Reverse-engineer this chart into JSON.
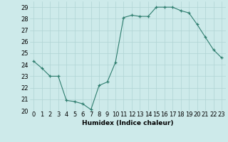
{
  "x": [
    0,
    1,
    2,
    3,
    4,
    5,
    6,
    7,
    8,
    9,
    10,
    11,
    12,
    13,
    14,
    15,
    16,
    17,
    18,
    19,
    20,
    21,
    22,
    23
  ],
  "y": [
    24.3,
    23.7,
    23.0,
    23.0,
    20.9,
    20.8,
    20.6,
    20.1,
    22.2,
    22.5,
    24.2,
    28.1,
    28.3,
    28.2,
    28.2,
    29.0,
    29.0,
    29.0,
    28.7,
    28.5,
    27.5,
    26.4,
    25.3,
    24.6
  ],
  "title": "",
  "xlabel": "Humidex (Indice chaleur)",
  "ylabel": "",
  "xlim": [
    -0.5,
    23.5
  ],
  "ylim": [
    20,
    29.5
  ],
  "yticks": [
    20,
    21,
    22,
    23,
    24,
    25,
    26,
    27,
    28,
    29
  ],
  "xticks": [
    0,
    1,
    2,
    3,
    4,
    5,
    6,
    7,
    8,
    9,
    10,
    11,
    12,
    13,
    14,
    15,
    16,
    17,
    18,
    19,
    20,
    21,
    22,
    23
  ],
  "line_color": "#2e7d6e",
  "marker_color": "#2e7d6e",
  "bg_color": "#cdeaea",
  "grid_color": "#b0d4d4",
  "label_fontsize": 6.5,
  "tick_fontsize": 6.0
}
